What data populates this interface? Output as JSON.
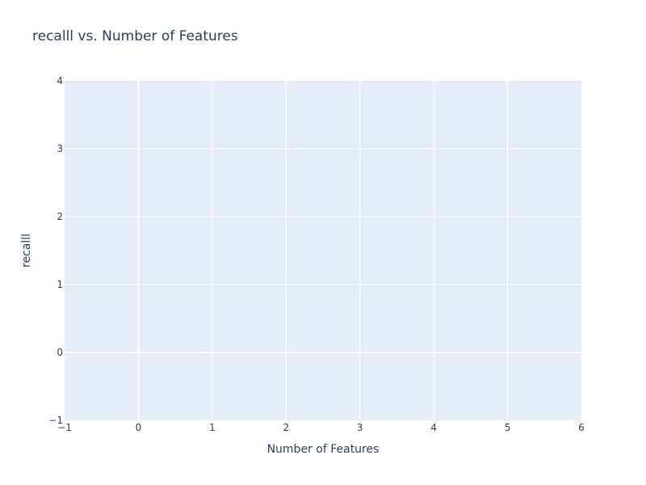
{
  "chart_data": {
    "type": "scatter",
    "title": "recalll vs. Number of Features",
    "xlabel": "Number of Features",
    "ylabel": "recalll",
    "xlim": [
      -1,
      6
    ],
    "ylim": [
      -1,
      4
    ],
    "x_ticks": [
      -1,
      0,
      1,
      2,
      3,
      4,
      5,
      6
    ],
    "y_ticks": [
      -1,
      0,
      1,
      2,
      3,
      4
    ],
    "x_tick_labels": [
      "−1",
      "0",
      "1",
      "2",
      "3",
      "4",
      "5",
      "6"
    ],
    "y_tick_labels": [
      "−1",
      "0",
      "1",
      "2",
      "3",
      "4"
    ],
    "series": [],
    "grid": true,
    "legend": "none"
  },
  "colors": {
    "plot_background": "#e5ecf6",
    "grid": "#ffffff",
    "text": "#2a3f5f",
    "paper": "#ffffff"
  }
}
